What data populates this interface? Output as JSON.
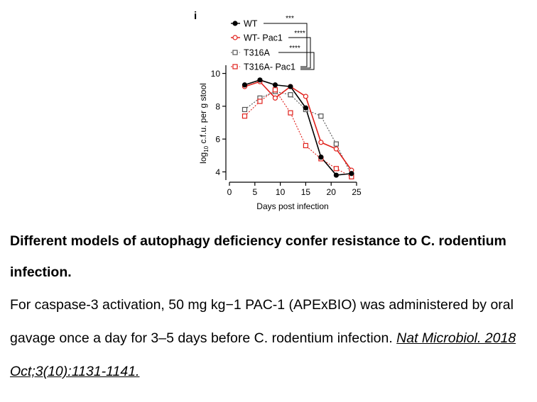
{
  "figure": {
    "panel_label": "i",
    "significance": [
      "***",
      "****",
      "****"
    ]
  },
  "chart_data": {
    "type": "line",
    "xlabel": "Days post infection",
    "ylabel_parts": [
      "log",
      "10",
      " c.f.u. per g stool"
    ],
    "xlim": [
      0,
      25
    ],
    "ylim": [
      3.5,
      10.5
    ],
    "xticks": [
      "0",
      "5",
      "10",
      "15",
      "20",
      "25"
    ],
    "yticks": [
      "4",
      "6",
      "8",
      "10"
    ],
    "legend_position": "top-left",
    "series": [
      {
        "name": "WT",
        "color": "#000000",
        "marker": "filled-circle",
        "dashed": false,
        "x": [
          3,
          6,
          9,
          12,
          15,
          18,
          21,
          24
        ],
        "values": [
          9.3,
          9.6,
          9.3,
          9.2,
          7.9,
          4.9,
          3.8,
          3.9
        ]
      },
      {
        "name": "WT- Pac1",
        "color": "#e0201b",
        "marker": "open-circle",
        "dashed": false,
        "x": [
          3,
          6,
          9,
          12,
          15,
          18,
          21,
          24
        ],
        "values": [
          9.2,
          9.5,
          8.5,
          9.2,
          8.6,
          5.8,
          5.4,
          4.1
        ]
      },
      {
        "name": "T316A",
        "color": "#555555",
        "marker": "open-square",
        "dashed": true,
        "x": [
          3,
          6,
          9,
          12,
          15,
          18,
          21,
          24
        ],
        "values": [
          7.8,
          8.5,
          8.9,
          8.7,
          7.8,
          7.4,
          5.7,
          3.8
        ]
      },
      {
        "name": "T316A- Pac1",
        "color": "#e0201b",
        "marker": "open-square",
        "dashed": true,
        "x": [
          3,
          6,
          9,
          12,
          15,
          18,
          21,
          24
        ],
        "values": [
          7.4,
          8.3,
          9.0,
          7.6,
          5.6,
          4.8,
          4.2,
          3.7
        ]
      }
    ]
  },
  "caption": {
    "title": "Different models of autophagy deficiency confer resistance to C. rodentium infection.",
    "body": "For caspase-3 activation, 50 mg kg−1 PAC-1 (APExBIO) was administered by oral gavage once a day for 3–5 days before C. rodentium infection. ",
    "citation": "Nat Microbiol. 2018 Oct;3(10):1131-1141."
  }
}
